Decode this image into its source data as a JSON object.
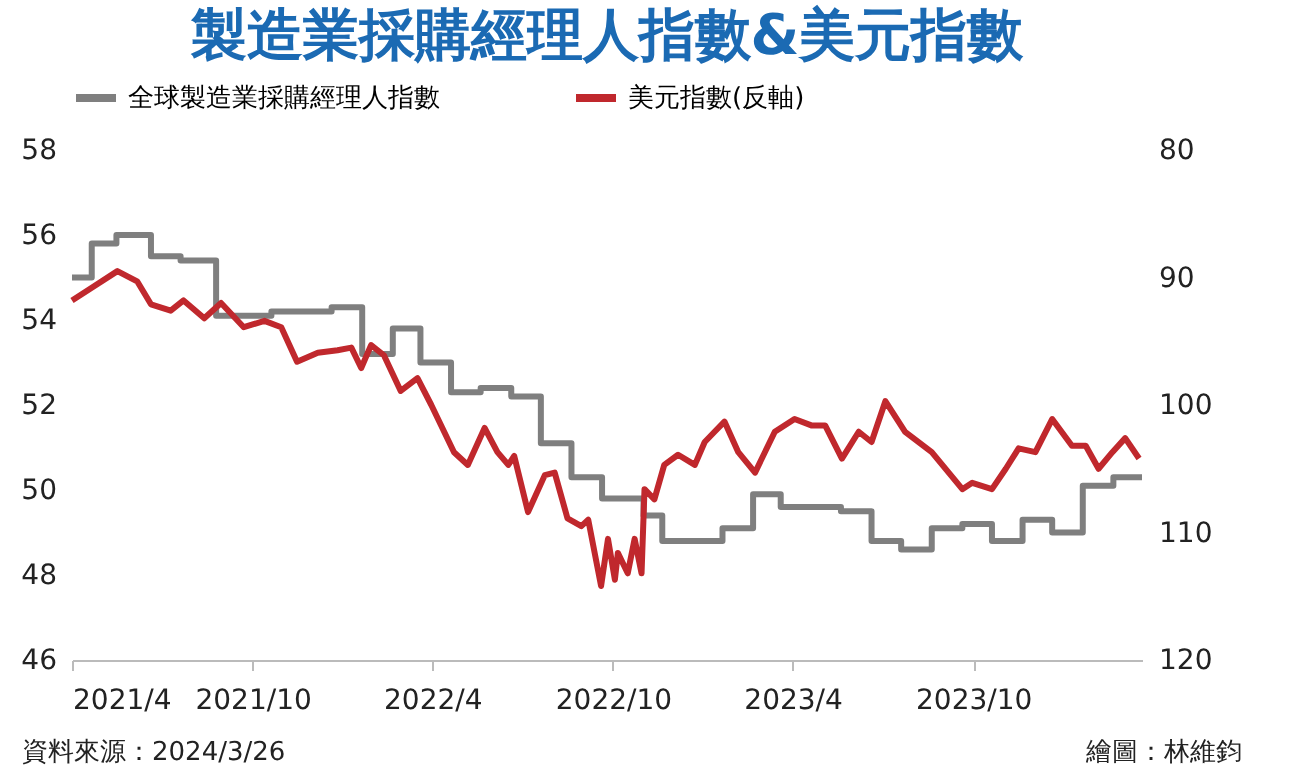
{
  "chart_data": {
    "type": "line",
    "title": "製造業採購經理人指數&美元指數",
    "xlim": [
      "2021-04-01",
      "2024-03-20"
    ],
    "xticks": [
      {
        "value": "2021-04-01",
        "label": "2021/4"
      },
      {
        "value": "2021-10-01",
        "label": "2021/10"
      },
      {
        "value": "2022-04-01",
        "label": "2022/4"
      },
      {
        "value": "2022-10-01",
        "label": "2022/10"
      },
      {
        "value": "2023-04-01",
        "label": "2023/4"
      },
      {
        "value": "2023-10-01",
        "label": "2023/10"
      }
    ],
    "ylim": [
      46,
      58
    ],
    "yticks": [
      46,
      48,
      50,
      52,
      54,
      56,
      58
    ],
    "y2lim": [
      120,
      80
    ],
    "y2ticks": [
      80,
      90,
      100,
      110,
      120
    ],
    "grid": false,
    "legend": "top",
    "series": [
      {
        "name": "全球製造業採購經理人指數",
        "type": "step",
        "color": "#7f7f7f",
        "x": [
          "2021-04-01",
          "2021-04-21",
          "2021-05-16",
          "2021-06-20",
          "2021-07-20",
          "2021-08-25",
          "2021-09-20",
          "2021-10-20",
          "2021-11-20",
          "2021-12-20",
          "2022-01-20",
          "2022-02-01",
          "2022-02-20",
          "2022-03-20",
          "2022-04-20",
          "2022-05-20",
          "2022-06-20",
          "2022-07-20",
          "2022-08-20",
          "2022-09-20",
          "2022-10-25",
          "2022-11-01",
          "2022-11-20",
          "2022-12-20",
          "2023-01-20",
          "2023-02-20",
          "2023-03-20",
          "2023-04-20",
          "2023-05-20",
          "2023-06-20",
          "2023-07-20",
          "2023-08-20",
          "2023-09-20",
          "2023-10-20",
          "2023-11-20",
          "2023-12-20",
          "2024-01-20",
          "2024-02-20",
          "2024-03-20"
        ],
        "values": [
          55.0,
          55.8,
          56.0,
          55.5,
          55.4,
          54.1,
          54.1,
          54.2,
          54.2,
          54.3,
          53.2,
          53.2,
          53.8,
          53.0,
          52.3,
          52.4,
          52.2,
          51.1,
          50.3,
          49.8,
          49.8,
          49.4,
          48.8,
          48.8,
          49.1,
          49.9,
          49.6,
          49.6,
          49.5,
          48.8,
          48.6,
          49.1,
          49.2,
          48.8,
          49.3,
          49.0,
          50.1,
          50.3,
          50.3
        ]
      },
      {
        "name": "美元指數(反軸)",
        "type": "line",
        "axis": "y2",
        "color": "#c0282d",
        "x": [
          "2021-04-01",
          "2021-04-21",
          "2021-05-17",
          "2021-06-06",
          "2021-06-20",
          "2021-07-10",
          "2021-07-23",
          "2021-08-13",
          "2021-08-30",
          "2021-09-22",
          "2021-10-13",
          "2021-10-30",
          "2021-11-15",
          "2021-12-06",
          "2021-12-26",
          "2022-01-09",
          "2022-01-19",
          "2022-01-29",
          "2022-02-11",
          "2022-02-28",
          "2022-03-17",
          "2022-03-31",
          "2022-04-23",
          "2022-05-07",
          "2022-05-24",
          "2022-06-06",
          "2022-06-17",
          "2022-06-23",
          "2022-07-07",
          "2022-07-24",
          "2022-08-03",
          "2022-08-16",
          "2022-08-30",
          "2022-09-06",
          "2022-09-19",
          "2022-09-26",
          "2022-10-03",
          "2022-10-06",
          "2022-10-16",
          "2022-10-23",
          "2022-10-30",
          "2022-11-02",
          "2022-11-12",
          "2022-11-22",
          "2022-12-06",
          "2022-12-23",
          "2023-01-02",
          "2023-01-12",
          "2023-01-22",
          "2023-02-05",
          "2023-02-22",
          "2023-03-14",
          "2023-04-03",
          "2023-04-20",
          "2023-05-04",
          "2023-05-21",
          "2023-06-07",
          "2023-06-20",
          "2023-07-04",
          "2023-07-24",
          "2023-08-20",
          "2023-09-20",
          "2023-09-30",
          "2023-10-20",
          "2023-11-03",
          "2023-11-16",
          "2023-12-03",
          "2023-12-20",
          "2024-01-09",
          "2024-01-23",
          "2024-02-05",
          "2024-02-19",
          "2024-03-03",
          "2024-03-17"
        ],
        "values": [
          91.8,
          90.8,
          89.5,
          90.3,
          92.1,
          92.6,
          91.8,
          93.2,
          92.0,
          93.9,
          93.4,
          93.9,
          96.6,
          95.9,
          95.7,
          95.5,
          97.1,
          95.3,
          96.1,
          98.9,
          97.9,
          100.0,
          103.7,
          104.7,
          101.8,
          103.7,
          104.7,
          104.0,
          108.4,
          105.5,
          105.3,
          108.9,
          109.5,
          109.0,
          114.2,
          110.5,
          113.7,
          111.6,
          113.2,
          110.5,
          113.2,
          106.6,
          107.4,
          104.7,
          103.9,
          104.7,
          102.9,
          102.1,
          101.3,
          103.7,
          105.3,
          102.1,
          101.1,
          101.6,
          101.6,
          104.2,
          102.1,
          102.9,
          99.7,
          102.1,
          103.7,
          106.6,
          106.1,
          106.6,
          105.0,
          103.4,
          103.7,
          101.1,
          103.2,
          103.2,
          105.0,
          103.7,
          102.6,
          104.2
        ]
      }
    ],
    "annotations": [
      "資料來源：2024/3/26",
      "繪圖：林維鈞"
    ]
  }
}
